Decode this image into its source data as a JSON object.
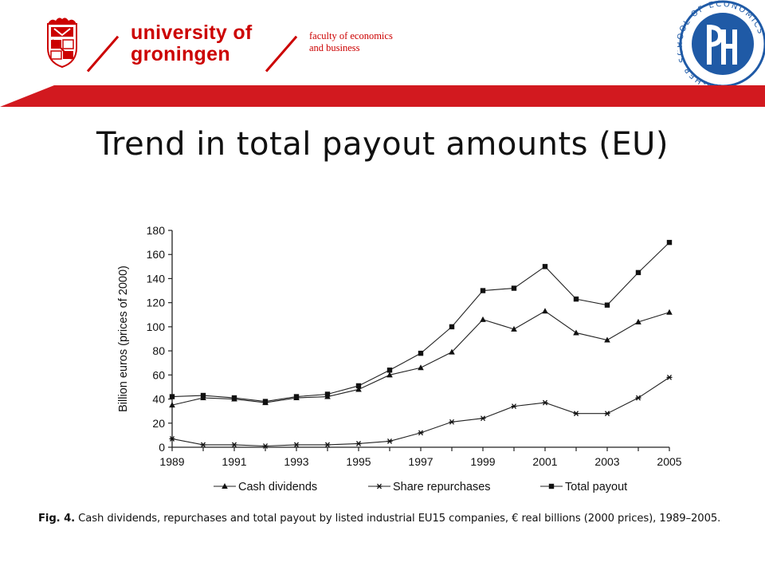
{
  "slide": {
    "title": "Trend in total payout amounts (EU)"
  },
  "header": {
    "university_line1": "university of",
    "university_line2": "groningen",
    "faculty_line1": "faculty of economics",
    "faculty_line2": "and business",
    "seal_text": "HIGHER SCHOOL OF ECONOMICS",
    "crest_icon": "groningen-crest-icon",
    "seal_icon": "hse-seal-icon",
    "brand_red": "#cc0000",
    "seal_blue": "#1f5aa6"
  },
  "caption": {
    "label": "Fig. 4.",
    "text": "Cash dividends, repurchases and total payout by listed industrial EU15 companies, € real billions (2000 prices), 1989–2005."
  },
  "chart_data": {
    "type": "line",
    "title": "",
    "xlabel": "",
    "ylabel": "Billion euros (prices of 2000)",
    "xlim": [
      1989,
      2005
    ],
    "ylim": [
      0,
      180
    ],
    "x": [
      1989,
      1990,
      1991,
      1992,
      1993,
      1994,
      1995,
      1996,
      1997,
      1998,
      1999,
      2000,
      2001,
      2002,
      2003,
      2004,
      2005
    ],
    "x_ticks": [
      "1989",
      "1991",
      "1993",
      "1995",
      "1997",
      "1999",
      "2001",
      "2003",
      "2005"
    ],
    "y_ticks": [
      "0",
      "20",
      "40",
      "60",
      "80",
      "100",
      "120",
      "140",
      "160",
      "180"
    ],
    "legend_position": "bottom",
    "grid": false,
    "series": [
      {
        "name": "Cash dividends",
        "marker": "triangle",
        "values": [
          35,
          41,
          40,
          37,
          41,
          42,
          48,
          60,
          66,
          79,
          106,
          98,
          113,
          95,
          89,
          104,
          112
        ]
      },
      {
        "name": "Share repurchases",
        "marker": "asterisk",
        "values": [
          7,
          2,
          2,
          1,
          2,
          2,
          3,
          5,
          12,
          21,
          24,
          34,
          37,
          28,
          28,
          41,
          58
        ]
      },
      {
        "name": "Total payout",
        "marker": "square",
        "values": [
          42,
          43,
          41,
          38,
          42,
          44,
          51,
          64,
          78,
          100,
          130,
          132,
          150,
          123,
          118,
          145,
          170
        ]
      }
    ]
  }
}
